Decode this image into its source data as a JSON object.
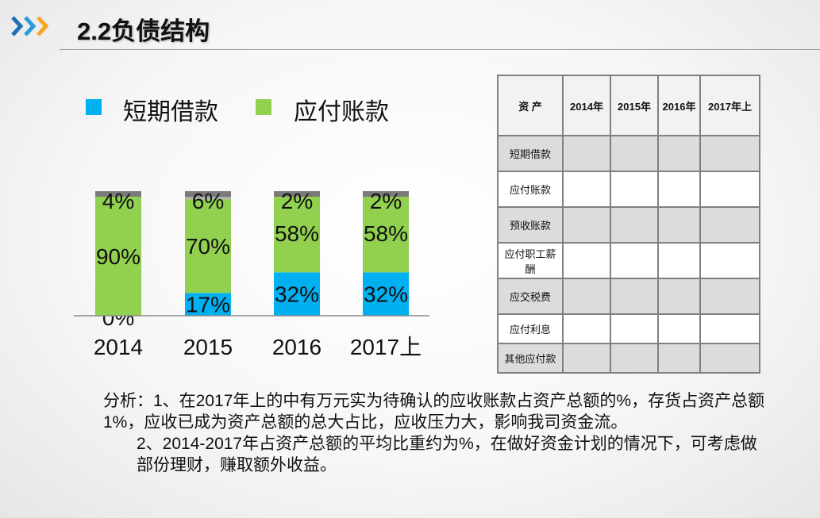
{
  "header": {
    "title": "2.2负债结构",
    "icon": "triple-chevron-right-icon",
    "icon_colors": [
      "#1f6fb5",
      "#2a9ad8",
      "#f5a623"
    ]
  },
  "chart_data": {
    "type": "bar",
    "stacked": true,
    "normalized": true,
    "categories": [
      "2014",
      "2015",
      "2016",
      "2017上"
    ],
    "series": [
      {
        "name": "短期借款",
        "color": "#00b0f0",
        "values": [
          0,
          17,
          32,
          32
        ],
        "labels": [
          "0%",
          "17%",
          "32%",
          "32%"
        ]
      },
      {
        "name": "应付账款",
        "color": "#92d050",
        "values": [
          90,
          70,
          58,
          58
        ],
        "labels": [
          "90%",
          "70%",
          "58%",
          "58%"
        ]
      },
      {
        "color": "#b0b0b0",
        "values": [
          4,
          6,
          2,
          2
        ],
        "labels": [
          "4%",
          "6%",
          "2%",
          "2%"
        ]
      }
    ],
    "legend": "top-left",
    "grid": false
  },
  "table": {
    "headers": [
      "资 产",
      "2014年",
      "2015年",
      "2016年",
      "2017年上"
    ],
    "rows": [
      "短期借款",
      "应付账款",
      "预收账款",
      "应付职工薪酬",
      "应交税费",
      "应付利息",
      "其他应付款"
    ]
  },
  "analysis": {
    "p1": "分析：1、在2017年上的中有万元实为待确认的应收账款占资产总额的%，存货占资产总额1%，应收已成为资产总额的总大占比，应收压力大，影响我司资金流。",
    "p2": "2、2014-2017年占资产总额的平均比重约为%，在做好资金计划的情况下，可考虑做部份理财，赚取额外收益。"
  }
}
